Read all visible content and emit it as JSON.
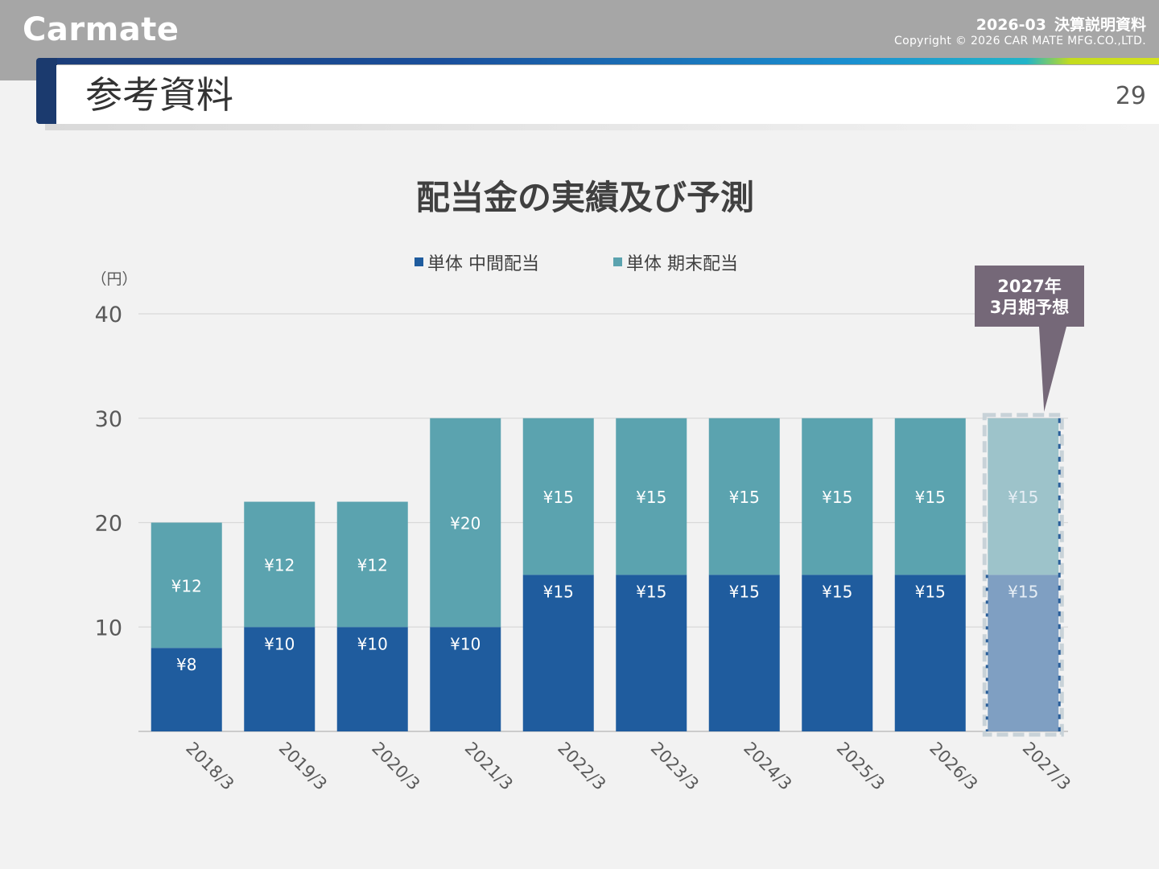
{
  "header": {
    "brand": "Carmate",
    "period": "2026-03",
    "doc_title": "決算説明資料",
    "copyright": "Copyright © 2026 CAR MATE MFG.CO.,LTD."
  },
  "slide": {
    "title": "参考資料",
    "page_number": "29"
  },
  "chart_data": {
    "type": "bar",
    "stacked": true,
    "title": "配当金の実績及び予測",
    "ylabel": "（円）",
    "ylim": [
      0,
      40
    ],
    "yticks": [
      10,
      20,
      30,
      40
    ],
    "grid": true,
    "legend_position": "top",
    "categories": [
      "2018/3",
      "2019/3",
      "2020/3",
      "2021/3",
      "2022/3",
      "2023/3",
      "2024/3",
      "2025/3",
      "2026/3",
      "2027/3"
    ],
    "series": [
      {
        "name": "単体 中間配当",
        "color": "#1f5c9e",
        "forecast_color": "#7f9fc2",
        "values": [
          8,
          10,
          10,
          10,
          15,
          15,
          15,
          15,
          15,
          15
        ],
        "labels": [
          "¥8",
          "¥10",
          "¥10",
          "¥10",
          "¥15",
          "¥15",
          "¥15",
          "¥15",
          "¥15",
          "¥15"
        ]
      },
      {
        "name": "単体 期末配当",
        "color": "#5ba3af",
        "forecast_color": "#9dc3ca",
        "values": [
          12,
          12,
          12,
          20,
          15,
          15,
          15,
          15,
          15,
          15
        ],
        "labels": [
          "¥12",
          "¥12",
          "¥12",
          "¥20",
          "¥15",
          "¥15",
          "¥15",
          "¥15",
          "¥15",
          "¥15"
        ]
      }
    ],
    "forecast_index": 9,
    "callout": "2027年\n3月期予想"
  }
}
